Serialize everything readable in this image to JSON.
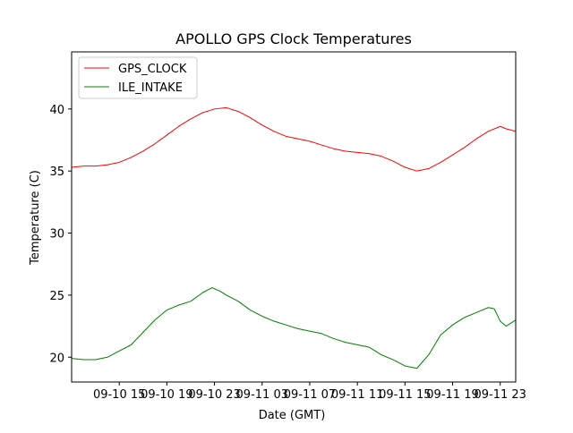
{
  "chart_data": {
    "type": "line",
    "title": "APOLLO GPS Clock Temperatures",
    "xlabel": "Date (GMT)",
    "ylabel": "Temperature (C)",
    "x_unit": "hours",
    "x_ticks": [
      {
        "t": 15,
        "label": "09-10 15"
      },
      {
        "t": 19,
        "label": "09-10 19"
      },
      {
        "t": 23,
        "label": "09-10 23"
      },
      {
        "t": 27,
        "label": "09-11 03"
      },
      {
        "t": 31,
        "label": "09-11 07"
      },
      {
        "t": 35,
        "label": "09-11 11"
      },
      {
        "t": 39,
        "label": "09-11 15"
      },
      {
        "t": 43,
        "label": "09-11 19"
      },
      {
        "t": 47,
        "label": "09-11 23"
      }
    ],
    "xlim": [
      11.0,
      48.3
    ],
    "y_ticks": [
      20,
      25,
      30,
      35,
      40
    ],
    "ylim": [
      18.0,
      44.6
    ],
    "grid": false,
    "legend_position": "top-left",
    "series": [
      {
        "name": "GPS_CLOCK",
        "color": "#ff0000",
        "points": [
          [
            11.0,
            35.3
          ],
          [
            12.0,
            35.4
          ],
          [
            13.0,
            35.4
          ],
          [
            14.0,
            35.5
          ],
          [
            15.0,
            35.7
          ],
          [
            16.0,
            36.1
          ],
          [
            17.0,
            36.6
          ],
          [
            18.0,
            37.2
          ],
          [
            19.0,
            37.9
          ],
          [
            20.0,
            38.6
          ],
          [
            21.0,
            39.2
          ],
          [
            22.0,
            39.7
          ],
          [
            23.0,
            40.0
          ],
          [
            24.0,
            40.1
          ],
          [
            25.0,
            39.8
          ],
          [
            26.0,
            39.3
          ],
          [
            27.0,
            38.7
          ],
          [
            28.0,
            38.2
          ],
          [
            29.0,
            37.8
          ],
          [
            30.0,
            37.6
          ],
          [
            31.0,
            37.4
          ],
          [
            32.0,
            37.1
          ],
          [
            33.0,
            36.8
          ],
          [
            34.0,
            36.6
          ],
          [
            35.0,
            36.5
          ],
          [
            36.0,
            36.4
          ],
          [
            37.0,
            36.2
          ],
          [
            38.0,
            35.8
          ],
          [
            39.0,
            35.3
          ],
          [
            40.0,
            35.0
          ],
          [
            41.0,
            35.2
          ],
          [
            42.0,
            35.7
          ],
          [
            43.0,
            36.3
          ],
          [
            44.0,
            36.9
          ],
          [
            45.0,
            37.6
          ],
          [
            46.0,
            38.2
          ],
          [
            47.0,
            38.6
          ],
          [
            47.5,
            38.4
          ],
          [
            48.3,
            38.2
          ]
        ]
      },
      {
        "name": "ILE_INTAKE",
        "color": "#008000",
        "points": [
          [
            11.0,
            19.9
          ],
          [
            12.0,
            19.8
          ],
          [
            13.0,
            19.8
          ],
          [
            14.0,
            20.0
          ],
          [
            15.0,
            20.5
          ],
          [
            16.0,
            21.0
          ],
          [
            17.0,
            22.0
          ],
          [
            18.0,
            23.0
          ],
          [
            19.0,
            23.8
          ],
          [
            20.0,
            24.2
          ],
          [
            21.0,
            24.5
          ],
          [
            22.0,
            25.2
          ],
          [
            22.8,
            25.6
          ],
          [
            23.5,
            25.3
          ],
          [
            24.0,
            25.0
          ],
          [
            25.0,
            24.5
          ],
          [
            26.0,
            23.8
          ],
          [
            27.0,
            23.3
          ],
          [
            28.0,
            22.9
          ],
          [
            29.0,
            22.6
          ],
          [
            30.0,
            22.3
          ],
          [
            31.0,
            22.1
          ],
          [
            32.0,
            21.9
          ],
          [
            33.0,
            21.5
          ],
          [
            34.0,
            21.2
          ],
          [
            35.0,
            21.0
          ],
          [
            36.0,
            20.8
          ],
          [
            37.0,
            20.2
          ],
          [
            38.0,
            19.8
          ],
          [
            39.0,
            19.3
          ],
          [
            40.0,
            19.1
          ],
          [
            41.0,
            20.2
          ],
          [
            42.0,
            21.8
          ],
          [
            43.0,
            22.6
          ],
          [
            44.0,
            23.2
          ],
          [
            45.0,
            23.6
          ],
          [
            46.0,
            24.0
          ],
          [
            46.5,
            23.9
          ],
          [
            47.0,
            22.9
          ],
          [
            47.5,
            22.5
          ],
          [
            48.3,
            23.0
          ]
        ]
      }
    ]
  }
}
